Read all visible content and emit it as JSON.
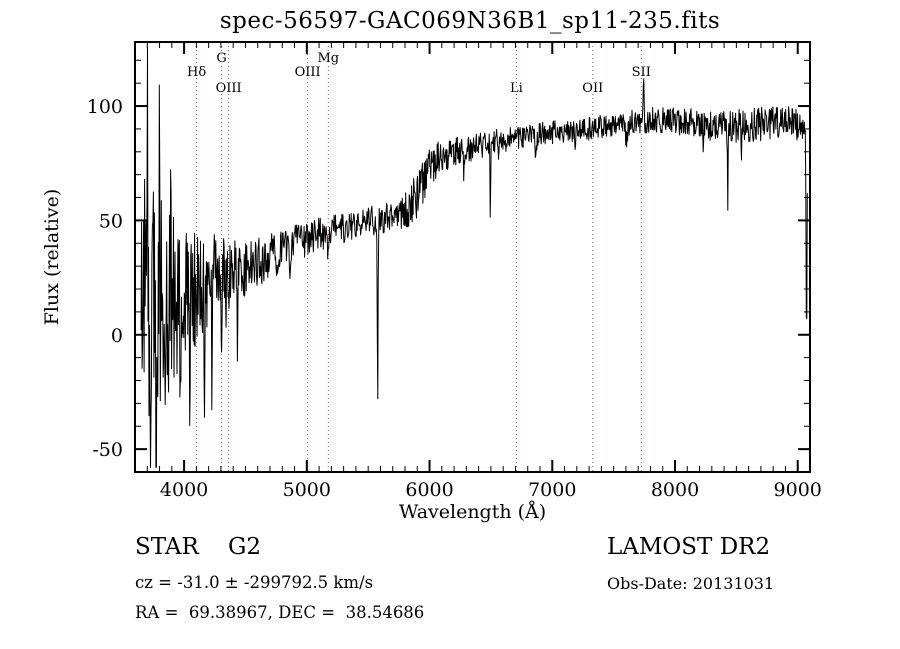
{
  "chart_data": {
    "type": "line",
    "title": "spec-56597-GAC069N36B1_sp11-235.fits",
    "xlabel": "Wavelength (Å)",
    "ylabel": "Flux (relative)",
    "xlim": [
      3600,
      9100
    ],
    "ylim": [
      -60,
      128
    ],
    "xticks": [
      4000,
      5000,
      6000,
      7000,
      8000,
      9000
    ],
    "yticks": [
      -50,
      0,
      50,
      100
    ],
    "x_minor_step": 100,
    "y_minor_step": 10,
    "grid": false,
    "legend": "none",
    "line_color": "#000000",
    "marker_color": "#a0524a",
    "markers": [
      {
        "label": "Hδ",
        "x": 4102,
        "row": 1
      },
      {
        "label": "G",
        "x": 4305,
        "row": 0
      },
      {
        "label": "OIII",
        "x": 4363,
        "row": 2
      },
      {
        "label": "OIII",
        "x": 5007,
        "row": 1
      },
      {
        "label": "Mg",
        "x": 5175,
        "row": 0
      },
      {
        "label": "Li",
        "x": 6708,
        "row": 2
      },
      {
        "label": "OII",
        "x": 7330,
        "row": 2
      },
      {
        "label": "SII",
        "x": 7725,
        "row": 1
      }
    ],
    "spectrum": {
      "xrange": [
        3650,
        9078
      ],
      "step": 4,
      "seed": 20131031,
      "clamp": [
        -58,
        126
      ],
      "continuum": [
        [
          3650,
          14
        ],
        [
          3800,
          11
        ],
        [
          3900,
          15
        ],
        [
          4000,
          19
        ],
        [
          4120,
          21
        ],
        [
          4250,
          25
        ],
        [
          4400,
          27
        ],
        [
          4550,
          30
        ],
        [
          4700,
          34
        ],
        [
          4850,
          38
        ],
        [
          5000,
          42
        ],
        [
          5150,
          45
        ],
        [
          5300,
          47
        ],
        [
          5450,
          50
        ],
        [
          5600,
          50
        ],
        [
          5750,
          53
        ],
        [
          5850,
          57
        ],
        [
          5950,
          68
        ],
        [
          6050,
          76
        ],
        [
          6150,
          79
        ],
        [
          6300,
          81
        ],
        [
          6500,
          84
        ],
        [
          6700,
          86
        ],
        [
          6900,
          88
        ],
        [
          7100,
          89
        ],
        [
          7300,
          90
        ],
        [
          7500,
          92
        ],
        [
          7700,
          93
        ],
        [
          7900,
          94
        ],
        [
          8100,
          93
        ],
        [
          8300,
          91
        ],
        [
          8500,
          91
        ],
        [
          8700,
          92
        ],
        [
          8900,
          94
        ],
        [
          9078,
          90
        ]
      ],
      "noise_profile": [
        [
          3650,
          60
        ],
        [
          3780,
          52
        ],
        [
          3860,
          42
        ],
        [
          3950,
          33
        ],
        [
          4060,
          27
        ],
        [
          4200,
          21
        ],
        [
          4350,
          16
        ],
        [
          4520,
          12
        ],
        [
          4700,
          10
        ],
        [
          4900,
          8.5
        ],
        [
          5100,
          7.5
        ],
        [
          5400,
          6.5
        ],
        [
          5650,
          7
        ],
        [
          5850,
          9
        ],
        [
          5960,
          11
        ],
        [
          6100,
          7
        ],
        [
          6400,
          5.5
        ],
        [
          6800,
          5
        ],
        [
          7200,
          5
        ],
        [
          7600,
          5.5
        ],
        [
          8000,
          6
        ],
        [
          8300,
          7
        ],
        [
          8600,
          8
        ],
        [
          9078,
          6.5
        ]
      ],
      "features": [
        {
          "x": 3700,
          "depth": -100,
          "w": 5
        },
        {
          "x": 3722,
          "depth": 70,
          "w": 4
        },
        {
          "x": 3748,
          "depth": -80,
          "w": 4
        },
        {
          "x": 3772,
          "depth": 60,
          "w": 4
        },
        {
          "x": 3798,
          "depth": -55,
          "w": 4
        },
        {
          "x": 3835,
          "depth": 50,
          "w": 5
        },
        {
          "x": 3890,
          "depth": -40,
          "w": 5
        },
        {
          "x": 3933,
          "depth": 45,
          "w": 4
        },
        {
          "x": 3970,
          "depth": 40,
          "w": 4
        },
        {
          "x": 4046,
          "depth": 42,
          "w": 4
        },
        {
          "x": 4101,
          "depth": 30,
          "w": 5
        },
        {
          "x": 4165,
          "depth": 55,
          "w": 4
        },
        {
          "x": 4227,
          "depth": 48,
          "w": 4
        },
        {
          "x": 4305,
          "depth": 22,
          "w": 5
        },
        {
          "x": 4340,
          "depth": 24,
          "w": 5
        },
        {
          "x": 4435,
          "depth": 30,
          "w": 4
        },
        {
          "x": 4861,
          "depth": 18,
          "w": 5
        },
        {
          "x": 5171,
          "depth": 10,
          "w": 7
        },
        {
          "x": 5577,
          "depth": 80,
          "w": 5
        },
        {
          "x": 5890,
          "depth": 12,
          "w": 5
        },
        {
          "x": 6280,
          "depth": 10,
          "w": 5
        },
        {
          "x": 6495,
          "depth": 29,
          "w": 4
        },
        {
          "x": 6563,
          "depth": 14,
          "w": 4
        },
        {
          "x": 6867,
          "depth": 11,
          "w": 7
        },
        {
          "x": 7186,
          "depth": 9,
          "w": 6
        },
        {
          "x": 7605,
          "depth": 10,
          "w": 9
        },
        {
          "x": 7745,
          "depth": -20,
          "w": 4
        },
        {
          "x": 8230,
          "depth": 13,
          "w": 5
        },
        {
          "x": 8430,
          "depth": 36,
          "w": 4
        },
        {
          "x": 8540,
          "depth": 12,
          "w": 4
        },
        {
          "x": 9072,
          "depth": 88,
          "w": 6
        }
      ]
    }
  },
  "annotations": {
    "class_label": "STAR    G2",
    "survey": "LAMOST DR2",
    "cz": "cz = -31.0 ± -299792.5 km/s",
    "obs_date": "Obs-Date: 20131031",
    "radec": "RA =  69.38967, DEC =  38.54686"
  }
}
